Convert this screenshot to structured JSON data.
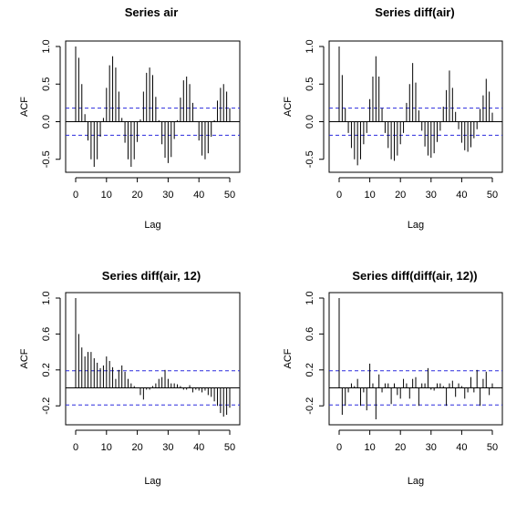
{
  "chart_data": [
    {
      "type": "bar",
      "title": "Series  air",
      "xlabel": "Lag",
      "ylabel": "ACF",
      "xlim": [
        0,
        50
      ],
      "ylim": [
        -0.6,
        1.0
      ],
      "xticks": [
        "0",
        "10",
        "20",
        "30",
        "40",
        "50"
      ],
      "yticks": [
        "-0.5",
        "0.0",
        "0.5",
        "1.0"
      ],
      "ci": 0.18,
      "x": [
        0,
        1,
        2,
        3,
        4,
        5,
        6,
        7,
        8,
        9,
        10,
        11,
        12,
        13,
        14,
        15,
        16,
        17,
        18,
        19,
        20,
        21,
        22,
        23,
        24,
        25,
        26,
        27,
        28,
        29,
        30,
        31,
        32,
        33,
        34,
        35,
        36,
        37,
        38,
        39,
        40,
        41,
        42,
        43,
        44,
        45,
        46,
        47,
        48,
        49,
        50
      ],
      "values": [
        1.0,
        0.85,
        0.5,
        0.1,
        -0.25,
        -0.5,
        -0.6,
        -0.5,
        -0.2,
        0.05,
        0.45,
        0.75,
        0.87,
        0.72,
        0.4,
        0.05,
        -0.28,
        -0.5,
        -0.6,
        -0.5,
        -0.27,
        0.03,
        0.4,
        0.65,
        0.72,
        0.62,
        0.33,
        0.02,
        -0.3,
        -0.48,
        -0.55,
        -0.47,
        -0.23,
        0.02,
        0.32,
        0.55,
        0.6,
        0.5,
        0.25,
        0.0,
        -0.25,
        -0.45,
        -0.5,
        -0.42,
        -0.2,
        0.02,
        0.28,
        0.45,
        0.5,
        0.4,
        0.18
      ]
    },
    {
      "type": "bar",
      "title": "Series  diff(air)",
      "xlabel": "Lag",
      "ylabel": "ACF",
      "xlim": [
        0,
        50
      ],
      "ylim": [
        -0.6,
        1.0
      ],
      "xticks": [
        "0",
        "10",
        "20",
        "30",
        "40",
        "50"
      ],
      "yticks": [
        "-0.5",
        "0.0",
        "0.5",
        "1.0"
      ],
      "ci": 0.18,
      "x": [
        0,
        1,
        2,
        3,
        4,
        5,
        6,
        7,
        8,
        9,
        10,
        11,
        12,
        13,
        14,
        15,
        16,
        17,
        18,
        19,
        20,
        21,
        22,
        23,
        24,
        25,
        26,
        27,
        28,
        29,
        30,
        31,
        32,
        33,
        34,
        35,
        36,
        37,
        38,
        39,
        40,
        41,
        42,
        43,
        44,
        45,
        46,
        47,
        48,
        49,
        50
      ],
      "values": [
        1.0,
        0.62,
        0.18,
        -0.15,
        -0.35,
        -0.5,
        -0.58,
        -0.5,
        -0.3,
        -0.15,
        0.3,
        0.6,
        0.87,
        0.6,
        0.18,
        -0.15,
        -0.35,
        -0.5,
        -0.52,
        -0.45,
        -0.3,
        -0.15,
        0.25,
        0.5,
        0.78,
        0.52,
        0.15,
        -0.12,
        -0.33,
        -0.45,
        -0.48,
        -0.42,
        -0.27,
        -0.12,
        0.2,
        0.42,
        0.68,
        0.45,
        0.13,
        -0.1,
        -0.28,
        -0.38,
        -0.4,
        -0.34,
        -0.22,
        -0.1,
        0.17,
        0.35,
        0.57,
        0.4,
        0.12
      ]
    },
    {
      "type": "bar",
      "title": "Series  diff(air, 12)",
      "xlabel": "Lag",
      "ylabel": "ACF",
      "xlim": [
        0,
        50
      ],
      "ylim": [
        -0.35,
        1.0
      ],
      "xticks": [
        "0",
        "10",
        "20",
        "30",
        "40",
        "50"
      ],
      "yticks": [
        "-0.2",
        "0.2",
        "0.6",
        "1.0"
      ],
      "ci": 0.19,
      "x": [
        0,
        1,
        2,
        3,
        4,
        5,
        6,
        7,
        8,
        9,
        10,
        11,
        12,
        13,
        14,
        15,
        16,
        17,
        18,
        19,
        20,
        21,
        22,
        23,
        24,
        25,
        26,
        27,
        28,
        29,
        30,
        31,
        32,
        33,
        34,
        35,
        36,
        37,
        38,
        39,
        40,
        41,
        42,
        43,
        44,
        45,
        46,
        47,
        48,
        49,
        50
      ],
      "values": [
        1.0,
        0.6,
        0.45,
        0.35,
        0.4,
        0.4,
        0.33,
        0.28,
        0.22,
        0.25,
        0.35,
        0.3,
        0.23,
        0.1,
        0.2,
        0.25,
        0.18,
        0.1,
        0.05,
        0.02,
        0.0,
        -0.08,
        -0.13,
        -0.02,
        -0.02,
        0.02,
        0.05,
        0.1,
        0.12,
        0.2,
        0.1,
        0.05,
        0.05,
        0.04,
        0.02,
        -0.02,
        -0.02,
        0.03,
        -0.05,
        -0.02,
        -0.03,
        -0.05,
        -0.03,
        -0.08,
        -0.1,
        -0.15,
        -0.2,
        -0.28,
        -0.32,
        -0.3,
        -0.22
      ]
    },
    {
      "type": "bar",
      "title": "Series  diff(diff(air, 12))",
      "xlabel": "Lag",
      "ylabel": "ACF",
      "xlim": [
        0,
        50
      ],
      "ylim": [
        -0.35,
        1.0
      ],
      "xticks": [
        "0",
        "10",
        "20",
        "30",
        "40",
        "50"
      ],
      "yticks": [
        "-0.2",
        "0.2",
        "0.6",
        "1.0"
      ],
      "ci": 0.19,
      "x": [
        0,
        1,
        2,
        3,
        4,
        5,
        6,
        7,
        8,
        9,
        10,
        11,
        12,
        13,
        14,
        15,
        16,
        17,
        18,
        19,
        20,
        21,
        22,
        23,
        24,
        25,
        26,
        27,
        28,
        29,
        30,
        31,
        32,
        33,
        34,
        35,
        36,
        37,
        38,
        39,
        40,
        41,
        42,
        43,
        44,
        45,
        46,
        47,
        48,
        49,
        50
      ],
      "values": [
        1.0,
        -0.3,
        -0.2,
        -0.05,
        0.05,
        0.02,
        0.1,
        -0.2,
        -0.05,
        -0.25,
        0.27,
        0.05,
        -0.35,
        0.15,
        -0.05,
        0.05,
        0.05,
        -0.18,
        0.05,
        -0.08,
        -0.12,
        0.1,
        0.05,
        -0.12,
        0.1,
        0.12,
        -0.2,
        0.05,
        0.05,
        0.22,
        -0.02,
        -0.03,
        0.05,
        0.05,
        0.02,
        -0.2,
        0.05,
        0.08,
        -0.1,
        0.05,
        0.02,
        -0.12,
        -0.05,
        0.12,
        -0.05,
        0.2,
        -0.2,
        0.1,
        0.18,
        -0.08,
        0.05
      ]
    }
  ]
}
